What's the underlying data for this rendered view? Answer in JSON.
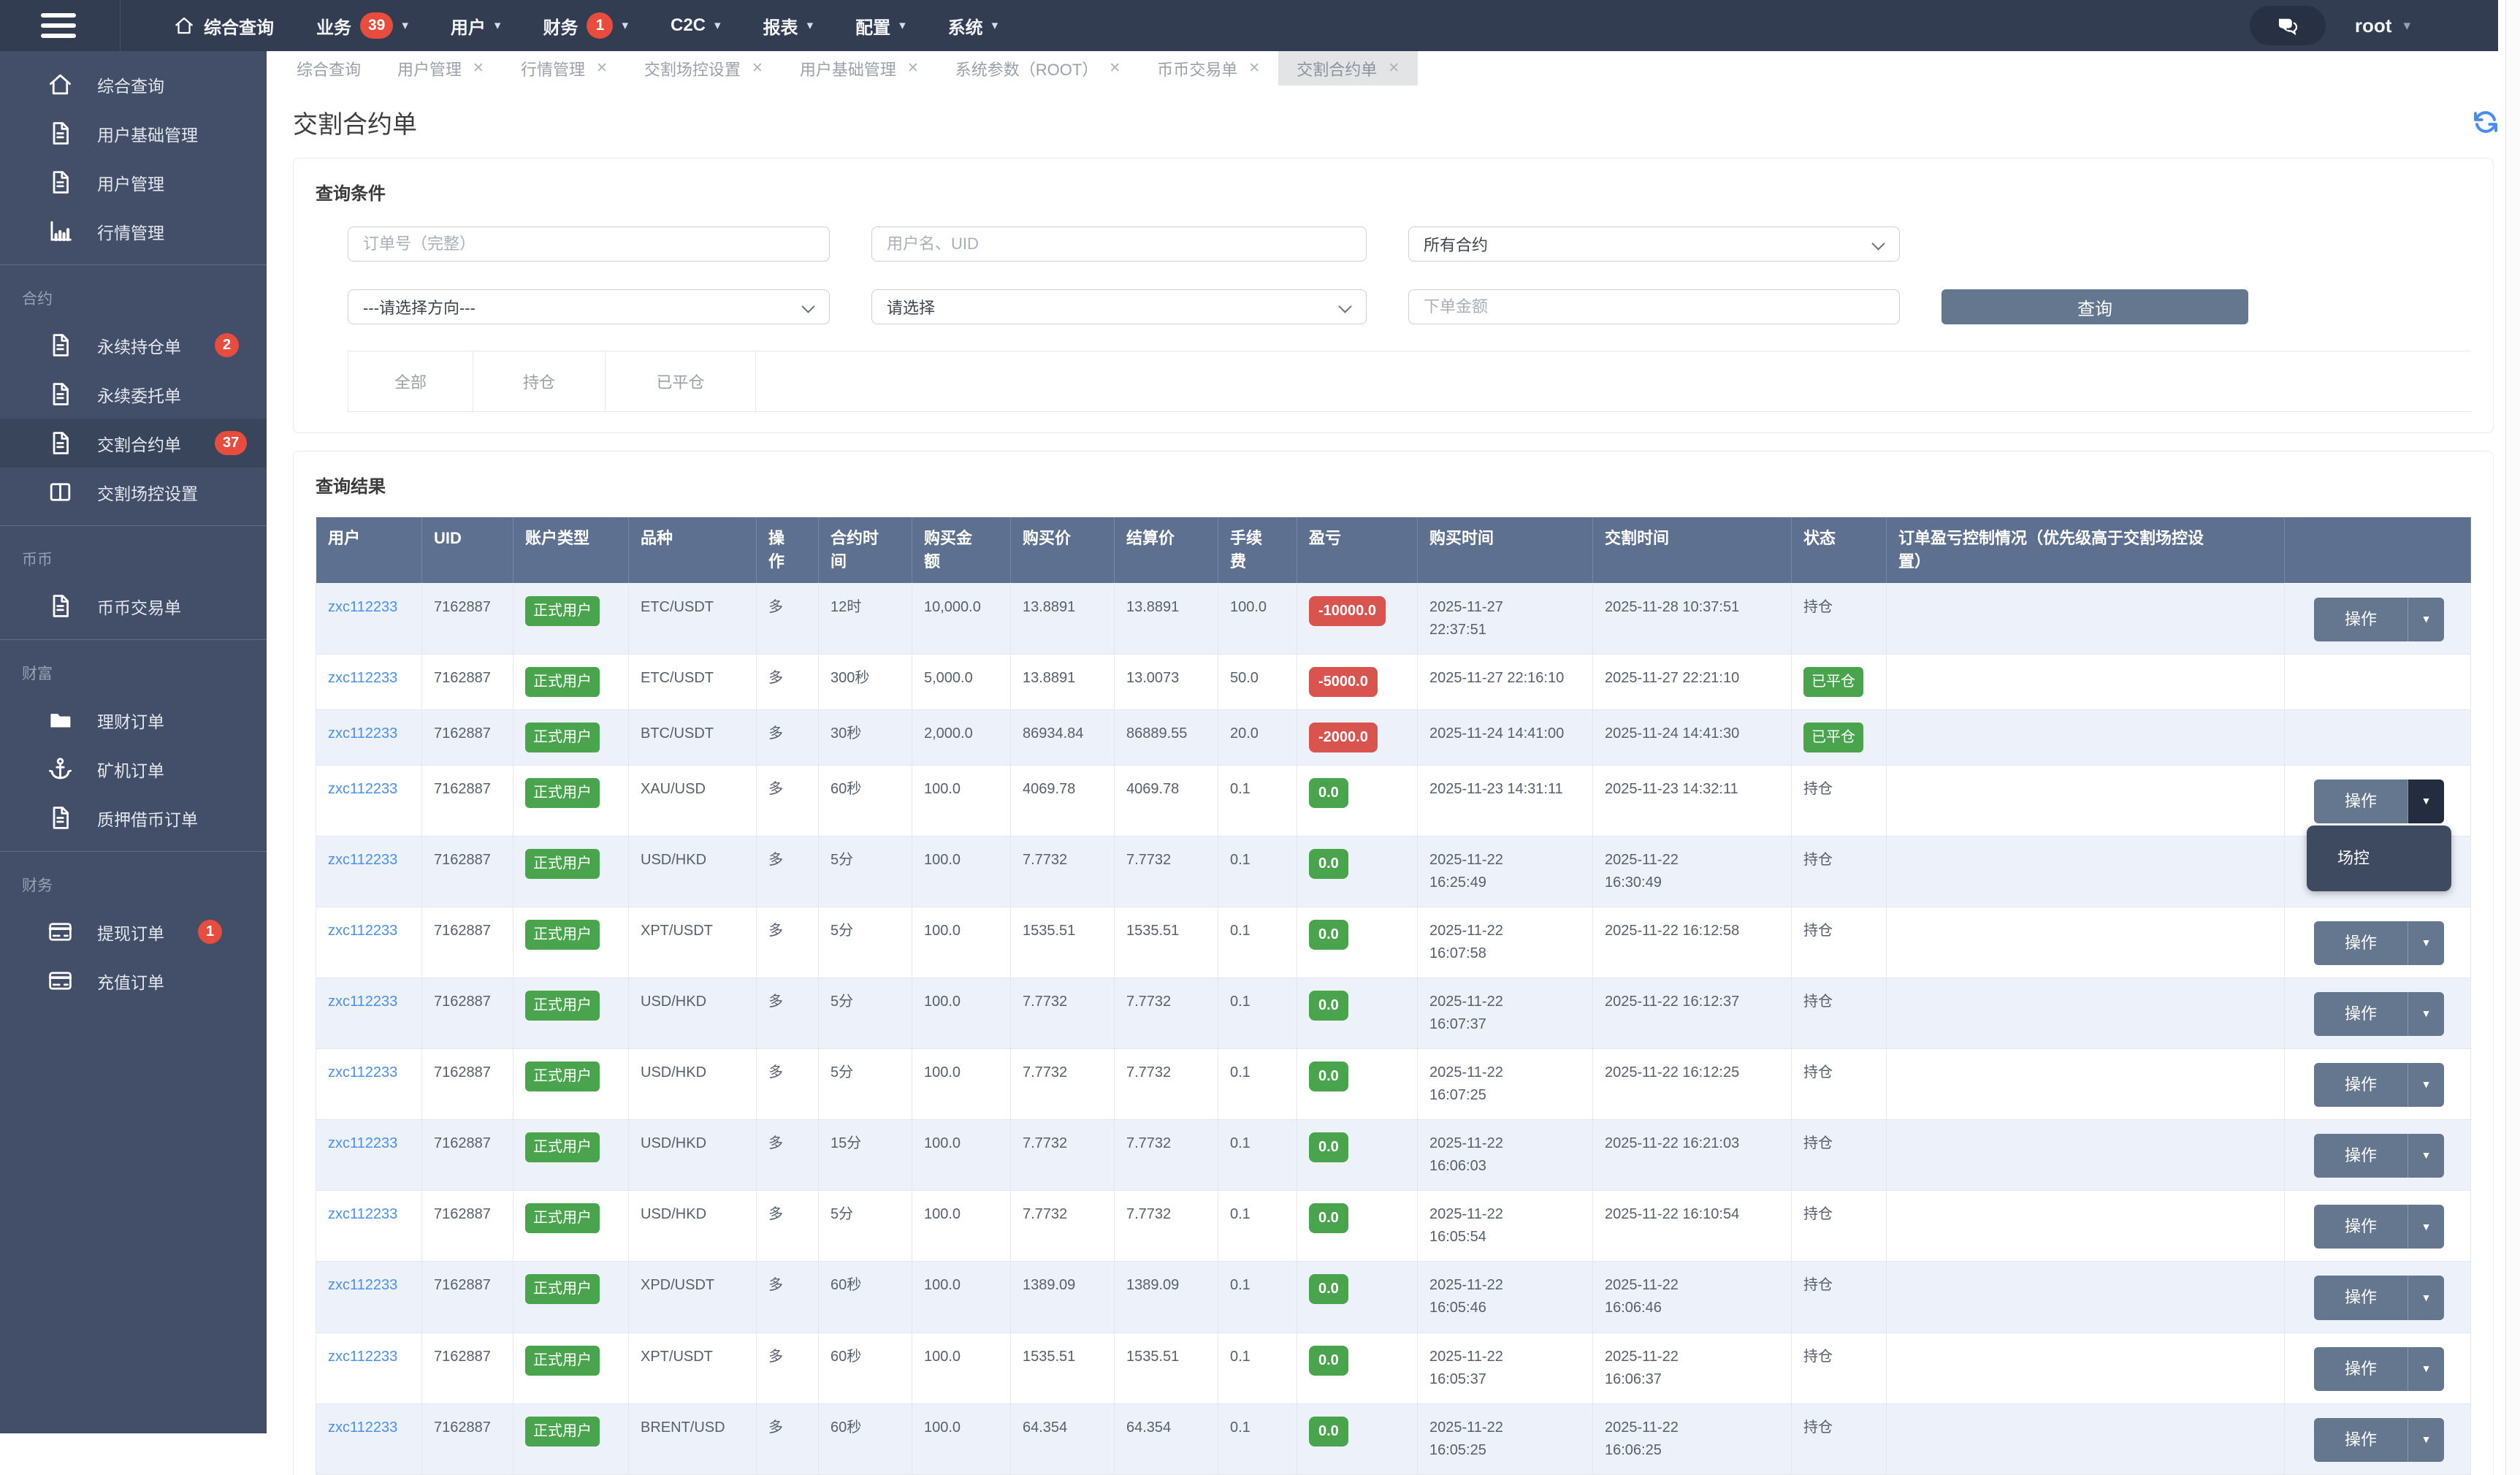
{
  "icons": {
    "caret_down": "▾",
    "close": "✕",
    "button_caret": "▼"
  },
  "navbar": {
    "user": "root",
    "items": [
      {
        "icon": "home-icon",
        "label": "综合查询"
      },
      {
        "label": "业务",
        "badge": "39",
        "caret": true
      },
      {
        "label": "用户",
        "caret": true
      },
      {
        "label": "财务",
        "badge": "1",
        "caret": true
      },
      {
        "label": "C2C",
        "caret": true
      },
      {
        "label": "报表",
        "caret": true
      },
      {
        "label": "配置",
        "caret": true
      },
      {
        "label": "系统",
        "caret": true
      }
    ]
  },
  "sidebar": {
    "sections": [
      {
        "label": "",
        "items": [
          {
            "icon": "home-icon",
            "label": "综合查询"
          },
          {
            "icon": "file-icon",
            "label": "用户基础管理"
          },
          {
            "icon": "file-icon",
            "label": "用户管理"
          },
          {
            "icon": "chart-icon",
            "label": "行情管理"
          }
        ]
      },
      {
        "label": "合约",
        "items": [
          {
            "icon": "file-icon",
            "label": "永续持仓单",
            "badge": "2"
          },
          {
            "icon": "file-icon",
            "label": "永续委托单"
          },
          {
            "icon": "file-icon",
            "label": "交割合约单",
            "badge": "37",
            "active": true
          },
          {
            "icon": "columns-icon",
            "label": "交割场控设置"
          }
        ]
      },
      {
        "label": "币币",
        "items": [
          {
            "icon": "file-icon",
            "label": "币币交易单"
          }
        ]
      },
      {
        "label": "财富",
        "items": [
          {
            "icon": "folder-icon",
            "label": "理财订单"
          },
          {
            "icon": "anchor-icon",
            "label": "矿机订单"
          },
          {
            "icon": "file-icon",
            "label": "质押借币订单"
          }
        ]
      },
      {
        "label": "财务",
        "items": [
          {
            "icon": "card-icon",
            "label": "提现订单",
            "badge": "1"
          },
          {
            "icon": "card-icon",
            "label": "充值订单"
          }
        ]
      }
    ]
  },
  "tabs": [
    {
      "label": "综合查询",
      "closable": false
    },
    {
      "label": "用户管理",
      "closable": true
    },
    {
      "label": "行情管理",
      "closable": true
    },
    {
      "label": "交割场控设置",
      "closable": true
    },
    {
      "label": "用户基础管理",
      "closable": true
    },
    {
      "label": "系统参数（ROOT）",
      "closable": true
    },
    {
      "label": "币币交易单",
      "closable": true
    },
    {
      "label": "交割合约单",
      "closable": true,
      "active": true
    }
  ],
  "page": {
    "title": "交割合约单"
  },
  "query": {
    "heading": "查询条件",
    "order_no_placeholder": "订单号（完整）",
    "user_placeholder": "用户名、UID",
    "contract_select_value": "所有合约",
    "direction_select_value": "---请选择方向---",
    "type_select_value": "请选择",
    "amount_placeholder": "下单金额",
    "search_button": "查询",
    "filters": [
      {
        "label": "全部"
      },
      {
        "label": "持仓"
      },
      {
        "label": "已平仓"
      }
    ]
  },
  "results": {
    "heading": "查询结果",
    "columns": [
      "用户",
      "UID",
      "账户类型",
      "品种",
      "操\n作",
      "合约时\n间",
      "购买金\n额",
      "购买价",
      "结算价",
      "手续\n费",
      "盈亏",
      "购买时间",
      "交割时间",
      "状态",
      "订单盈亏控制情况（优先级高于交割场控设\n置）",
      ""
    ],
    "action_label": "操作",
    "action_menu": [
      "场控"
    ],
    "status_colors": {
      "green": "#4aa44e",
      "red": "#d9534f"
    },
    "rows": [
      {
        "user": "zxc112233",
        "uid": "7162887",
        "account_type": "正式用户",
        "symbol": "ETC/USDT",
        "direction": "多",
        "period": "12时",
        "amount": "10,000.0",
        "buy_price": "13.8891",
        "settle_price": "13.8891",
        "fee": "100.0",
        "pnl": "-10000.0",
        "pnl_color": "red",
        "buy_time": "2025-11-27\n22:37:51",
        "delivery_time": "2025-11-28 10:37:51",
        "status": "持仓",
        "status_style": "text",
        "control": "",
        "action": true
      },
      {
        "user": "zxc112233",
        "uid": "7162887",
        "account_type": "正式用户",
        "symbol": "ETC/USDT",
        "direction": "多",
        "period": "300秒",
        "amount": "5,000.0",
        "buy_price": "13.8891",
        "settle_price": "13.0073",
        "fee": "50.0",
        "pnl": "-5000.0",
        "pnl_color": "red",
        "buy_time": "2025-11-27 22:16:10",
        "delivery_time": "2025-11-27 22:21:10",
        "status": "已平仓",
        "status_style": "badge",
        "control": "",
        "action": false
      },
      {
        "user": "zxc112233",
        "uid": "7162887",
        "account_type": "正式用户",
        "symbol": "BTC/USDT",
        "direction": "多",
        "period": "30秒",
        "amount": "2,000.0",
        "buy_price": "86934.84",
        "settle_price": "86889.55",
        "fee": "20.0",
        "pnl": "-2000.0",
        "pnl_color": "red",
        "buy_time": "2025-11-24 14:41:00",
        "delivery_time": "2025-11-24 14:41:30",
        "status": "已平仓",
        "status_style": "badge",
        "control": "",
        "action": false
      },
      {
        "user": "zxc112233",
        "uid": "7162887",
        "account_type": "正式用户",
        "symbol": "XAU/USD",
        "direction": "多",
        "period": "60秒",
        "amount": "100.0",
        "buy_price": "4069.78",
        "settle_price": "4069.78",
        "fee": "0.1",
        "pnl": "0.0",
        "pnl_color": "green",
        "buy_time": "2025-11-23 14:31:11",
        "delivery_time": "2025-11-23 14:32:11",
        "status": "持仓",
        "status_style": "text",
        "control": "",
        "action": true,
        "menu_open": true
      },
      {
        "user": "zxc112233",
        "uid": "7162887",
        "account_type": "正式用户",
        "symbol": "USD/HKD",
        "direction": "多",
        "period": "5分",
        "amount": "100.0",
        "buy_price": "7.7732",
        "settle_price": "7.7732",
        "fee": "0.1",
        "pnl": "0.0",
        "pnl_color": "green",
        "buy_time": "2025-11-22\n16:25:49",
        "delivery_time": "2025-11-22\n16:30:49",
        "status": "持仓",
        "status_style": "text",
        "control": "",
        "action": false
      },
      {
        "user": "zxc112233",
        "uid": "7162887",
        "account_type": "正式用户",
        "symbol": "XPT/USDT",
        "direction": "多",
        "period": "5分",
        "amount": "100.0",
        "buy_price": "1535.51",
        "settle_price": "1535.51",
        "fee": "0.1",
        "pnl": "0.0",
        "pnl_color": "green",
        "buy_time": "2025-11-22\n16:07:58",
        "delivery_time": "2025-11-22 16:12:58",
        "status": "持仓",
        "status_style": "text",
        "control": "",
        "action": true
      },
      {
        "user": "zxc112233",
        "uid": "7162887",
        "account_type": "正式用户",
        "symbol": "USD/HKD",
        "direction": "多",
        "period": "5分",
        "amount": "100.0",
        "buy_price": "7.7732",
        "settle_price": "7.7732",
        "fee": "0.1",
        "pnl": "0.0",
        "pnl_color": "green",
        "buy_time": "2025-11-22\n16:07:37",
        "delivery_time": "2025-11-22 16:12:37",
        "status": "持仓",
        "status_style": "text",
        "control": "",
        "action": true
      },
      {
        "user": "zxc112233",
        "uid": "7162887",
        "account_type": "正式用户",
        "symbol": "USD/HKD",
        "direction": "多",
        "period": "5分",
        "amount": "100.0",
        "buy_price": "7.7732",
        "settle_price": "7.7732",
        "fee": "0.1",
        "pnl": "0.0",
        "pnl_color": "green",
        "buy_time": "2025-11-22\n16:07:25",
        "delivery_time": "2025-11-22 16:12:25",
        "status": "持仓",
        "status_style": "text",
        "control": "",
        "action": true
      },
      {
        "user": "zxc112233",
        "uid": "7162887",
        "account_type": "正式用户",
        "symbol": "USD/HKD",
        "direction": "多",
        "period": "15分",
        "amount": "100.0",
        "buy_price": "7.7732",
        "settle_price": "7.7732",
        "fee": "0.1",
        "pnl": "0.0",
        "pnl_color": "green",
        "buy_time": "2025-11-22\n16:06:03",
        "delivery_time": "2025-11-22 16:21:03",
        "status": "持仓",
        "status_style": "text",
        "control": "",
        "action": true
      },
      {
        "user": "zxc112233",
        "uid": "7162887",
        "account_type": "正式用户",
        "symbol": "USD/HKD",
        "direction": "多",
        "period": "5分",
        "amount": "100.0",
        "buy_price": "7.7732",
        "settle_price": "7.7732",
        "fee": "0.1",
        "pnl": "0.0",
        "pnl_color": "green",
        "buy_time": "2025-11-22\n16:05:54",
        "delivery_time": "2025-11-22 16:10:54",
        "status": "持仓",
        "status_style": "text",
        "control": "",
        "action": true
      },
      {
        "user": "zxc112233",
        "uid": "7162887",
        "account_type": "正式用户",
        "symbol": "XPD/USDT",
        "direction": "多",
        "period": "60秒",
        "amount": "100.0",
        "buy_price": "1389.09",
        "settle_price": "1389.09",
        "fee": "0.1",
        "pnl": "0.0",
        "pnl_color": "green",
        "buy_time": "2025-11-22\n16:05:46",
        "delivery_time": "2025-11-22\n16:06:46",
        "status": "持仓",
        "status_style": "text",
        "control": "",
        "action": true
      },
      {
        "user": "zxc112233",
        "uid": "7162887",
        "account_type": "正式用户",
        "symbol": "XPT/USDT",
        "direction": "多",
        "period": "60秒",
        "amount": "100.0",
        "buy_price": "1535.51",
        "settle_price": "1535.51",
        "fee": "0.1",
        "pnl": "0.0",
        "pnl_color": "green",
        "buy_time": "2025-11-22\n16:05:37",
        "delivery_time": "2025-11-22\n16:06:37",
        "status": "持仓",
        "status_style": "text",
        "control": "",
        "action": true
      },
      {
        "user": "zxc112233",
        "uid": "7162887",
        "account_type": "正式用户",
        "symbol": "BRENT/USD",
        "direction": "多",
        "period": "60秒",
        "amount": "100.0",
        "buy_price": "64.354",
        "settle_price": "64.354",
        "fee": "0.1",
        "pnl": "0.0",
        "pnl_color": "green",
        "buy_time": "2025-11-22\n16:05:25",
        "delivery_time": "2025-11-22\n16:06:25",
        "status": "持仓",
        "status_style": "text",
        "control": "",
        "action": true
      }
    ]
  }
}
